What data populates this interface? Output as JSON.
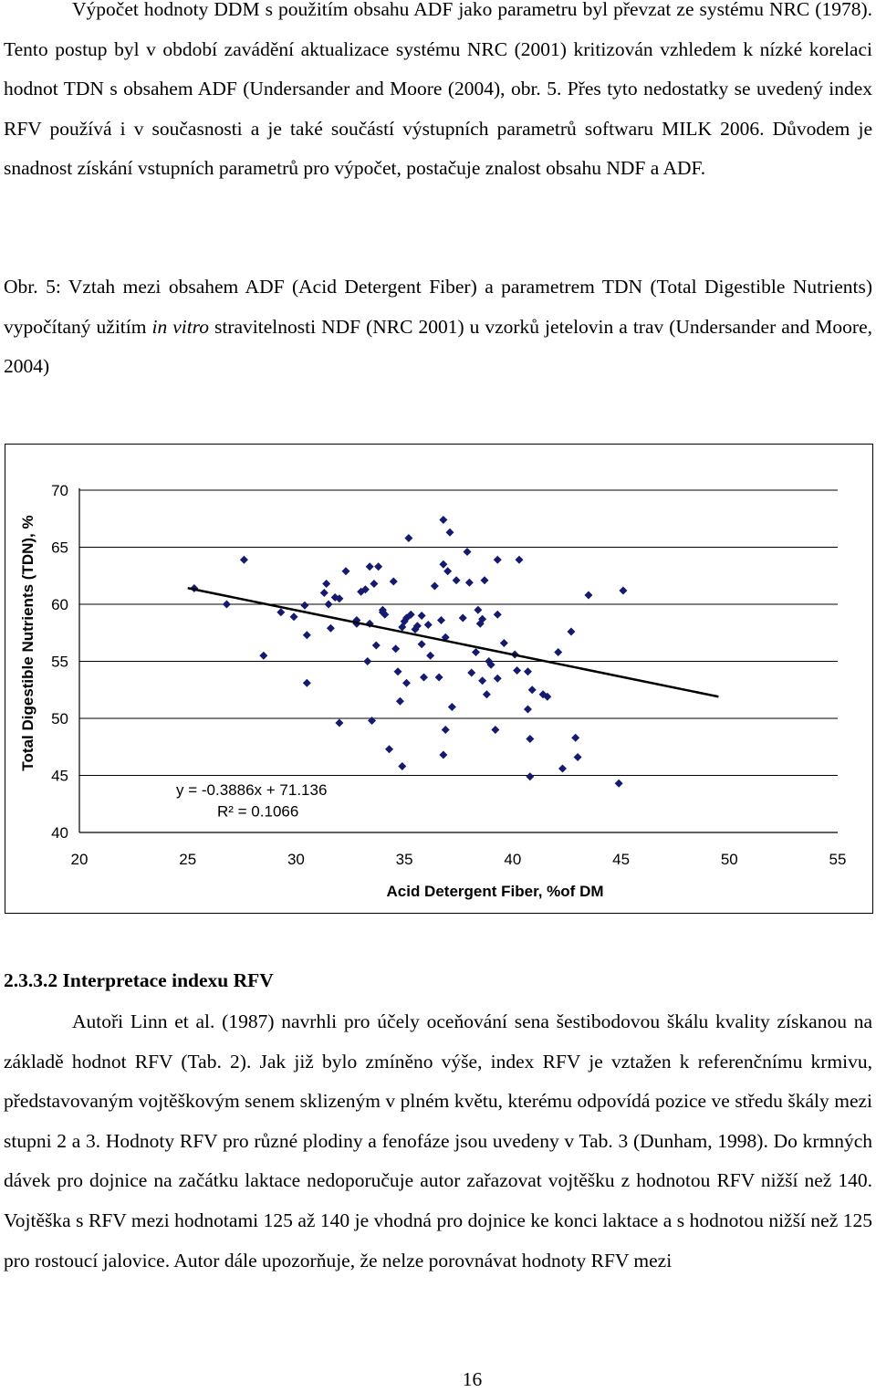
{
  "intro": "Výpočet hodnoty DDM s použitím obsahu ADF jako parametru byl převzat ze systému NRC (1978). Tento postup byl v období zavádění aktualizace systému NRC (2001) kritizován vzhledem k nízké korelaci hodnot TDN s obsahem ADF (Undersander and Moore (2004), obr. 5. Přes tyto nedostatky se uvedený index RFV používá i v současnosti a je také součástí výstupních parametrů softwaru MILK 2006. Důvodem je snadnost získání vstupních parametrů pro výpočet, postačuje znalost obsahu NDF a ADF.",
  "caption": {
    "before": "Obr. 5: Vztah mezi obsahem ADF (Acid Detergent Fiber) a parametrem TDN (Total Digestible Nutrients) vypočítaný užitím ",
    "italic": "in vitro",
    "after": " stravitelnosti NDF (NRC 2001) u vzorků jetelovin a trav (Undersander and Moore, 2004)"
  },
  "heading": "2.3.3.2 Interpretace indexu RFV",
  "section_text": "Autoři Linn et al. (1987) navrhli pro účely oceňování sena šestibodovou škálu kvality získanou na základě hodnot RFV (Tab. 2). Jak již bylo zmíněno výše, index RFV je vztažen k referenčnímu krmivu, představovaným vojtěškovým senem sklizeným v plném květu, kterému odpovídá pozice ve středu škály mezi stupni 2 a 3. Hodnoty RFV pro různé plodiny a fenofáze jsou uvedeny v Tab. 3 (Dunham, 1998). Do krmných dávek pro dojnice na začátku laktace nedoporučuje autor zařazovat vojtěšku z hodnotou RFV nižší než 140. Vojtěška s RFV mezi hodnotami 125 až 140 je vhodná pro dojnice ke konci laktace a s hodnotou nižší než 125 pro rostoucí jalovice. Autor dále upozorňuje, že nelze porovnávat hodnoty RFV mezi",
  "page_number": "16",
  "chart_data": {
    "type": "scatter",
    "xlabel": "Acid Detergent Fiber, %of DM",
    "ylabel": "Total Digestible Nutrients (TDN), %",
    "xlim": [
      20,
      55
    ],
    "ylim": [
      40,
      70
    ],
    "xticks": [
      "20",
      "25",
      "30",
      "35",
      "40",
      "45",
      "50",
      "55"
    ],
    "yticks": [
      "40",
      "45",
      "50",
      "55",
      "60",
      "65",
      "70"
    ],
    "grid": "horizontal",
    "marker_color": "#141a6e",
    "trendline": {
      "slope": -0.3886,
      "intercept": 71.136,
      "x_range": [
        25,
        49.5
      ]
    },
    "equation": "y = -0.3886x + 71.136",
    "r_squared": "R² = 0.1066",
    "points": [
      [
        25.3,
        61.4
      ],
      [
        26.8,
        60.0
      ],
      [
        27.6,
        63.9
      ],
      [
        28.5,
        55.5
      ],
      [
        29.3,
        59.3
      ],
      [
        29.9,
        58.9
      ],
      [
        30.4,
        59.9
      ],
      [
        30.5,
        57.3
      ],
      [
        30.5,
        53.1
      ],
      [
        31.3,
        61.0
      ],
      [
        31.4,
        61.8
      ],
      [
        31.5,
        60.0
      ],
      [
        31.6,
        57.9
      ],
      [
        31.8,
        60.6
      ],
      [
        32.0,
        49.6
      ],
      [
        32.0,
        60.5
      ],
      [
        32.3,
        62.9
      ],
      [
        32.8,
        58.6
      ],
      [
        32.8,
        58.3
      ],
      [
        33.0,
        61.1
      ],
      [
        33.2,
        61.3
      ],
      [
        33.3,
        55.0
      ],
      [
        33.4,
        63.3
      ],
      [
        33.4,
        58.3
      ],
      [
        33.5,
        49.8
      ],
      [
        33.6,
        61.8
      ],
      [
        33.7,
        56.4
      ],
      [
        33.8,
        63.3
      ],
      [
        34.0,
        59.5
      ],
      [
        34.0,
        59.3
      ],
      [
        34.1,
        59.1
      ],
      [
        34.3,
        47.3
      ],
      [
        34.5,
        62.0
      ],
      [
        34.6,
        56.1
      ],
      [
        34.7,
        54.1
      ],
      [
        34.8,
        51.5
      ],
      [
        34.9,
        45.8
      ],
      [
        34.9,
        58.0
      ],
      [
        35.0,
        58.5
      ],
      [
        35.1,
        53.1
      ],
      [
        35.1,
        58.8
      ],
      [
        35.2,
        65.8
      ],
      [
        35.3,
        59.1
      ],
      [
        35.5,
        57.8
      ],
      [
        35.6,
        58.1
      ],
      [
        35.8,
        56.5
      ],
      [
        35.9,
        53.6
      ],
      [
        35.8,
        59.0
      ],
      [
        36.1,
        58.2
      ],
      [
        36.2,
        55.5
      ],
      [
        36.4,
        61.6
      ],
      [
        36.6,
        53.6
      ],
      [
        36.7,
        58.6
      ],
      [
        36.8,
        63.5
      ],
      [
        36.8,
        67.4
      ],
      [
        36.8,
        46.8
      ],
      [
        36.9,
        57.1
      ],
      [
        36.9,
        49.0
      ],
      [
        37.0,
        62.9
      ],
      [
        37.1,
        66.3
      ],
      [
        37.2,
        51.0
      ],
      [
        37.4,
        62.1
      ],
      [
        37.7,
        58.8
      ],
      [
        37.9,
        64.6
      ],
      [
        38.0,
        61.9
      ],
      [
        38.1,
        54.0
      ],
      [
        38.3,
        55.8
      ],
      [
        38.4,
        59.5
      ],
      [
        38.5,
        58.3
      ],
      [
        38.6,
        58.7
      ],
      [
        38.6,
        53.3
      ],
      [
        38.7,
        62.1
      ],
      [
        38.8,
        52.1
      ],
      [
        38.9,
        55.0
      ],
      [
        39.0,
        54.7
      ],
      [
        39.2,
        49.0
      ],
      [
        39.3,
        63.9
      ],
      [
        39.3,
        59.1
      ],
      [
        39.3,
        53.5
      ],
      [
        39.6,
        56.6
      ],
      [
        40.1,
        55.6
      ],
      [
        40.2,
        54.2
      ],
      [
        40.3,
        63.9
      ],
      [
        40.7,
        54.1
      ],
      [
        40.8,
        48.2
      ],
      [
        40.7,
        50.8
      ],
      [
        40.8,
        44.9
      ],
      [
        40.9,
        52.5
      ],
      [
        41.4,
        52.1
      ],
      [
        41.6,
        51.9
      ],
      [
        42.1,
        55.8
      ],
      [
        42.3,
        45.6
      ],
      [
        42.7,
        57.6
      ],
      [
        42.9,
        48.3
      ],
      [
        43.0,
        46.6
      ],
      [
        43.5,
        60.8
      ],
      [
        44.9,
        44.3
      ],
      [
        45.1,
        61.2
      ]
    ]
  }
}
